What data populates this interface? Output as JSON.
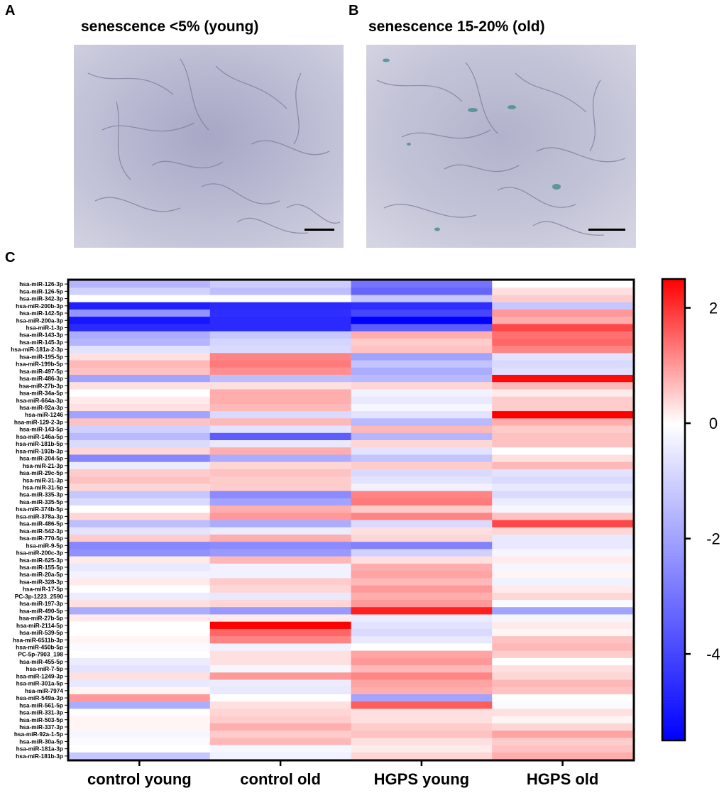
{
  "panels": {
    "A": {
      "letter": "A",
      "title": "senescence <5% (young)"
    },
    "B": {
      "letter": "B",
      "title": "senescence 15-20% (old)"
    },
    "C": {
      "letter": "C"
    }
  },
  "chart_data": {
    "type": "heatmap",
    "columns": [
      "control young",
      "control old",
      "HGPS young",
      "HGPS old"
    ],
    "rows": [
      "hsa-miR-126-3p",
      "hsa-miR-126-5p",
      "hsa-miR-342-3p",
      "hsa-miR-200b-3p",
      "hsa-miR-142-5p",
      "hsa-miR-200a-3p",
      "hsa-miR-1-3p",
      "hsa-miR-143-3p",
      "hsa-miR-145-3p",
      "hsa-miR-181a-2-3p",
      "hsa-miR-195-5p",
      "hsa-miR-199b-5p",
      "hsa-miR-497-5p",
      "hsa-miR-486-3p",
      "hsa-miR-27b-3p",
      "hsa-miR-34a-5p",
      "hsa-miR-664a-3p",
      "hsa-miR-92a-3p",
      "hsa-miR-1246",
      "hsa-miR-129-2-3p",
      "hsa-miR-143-5p",
      "hsa-miR-146a-5p",
      "hsa-miR-181b-5p",
      "hsa-miR-193b-3p",
      "hsa-miR-204-5p",
      "hsa-miR-21-3p",
      "hsa-miR-29c-5p",
      "hsa-miR-31-3p",
      "hsa-miR-31-5p",
      "hsa-miR-335-3p",
      "hsa-miR-335-5p",
      "hsa-miR-374b-5p",
      "hsa-miR-378a-3p",
      "hsa-miR-486-5p",
      "hsa-miR-542-3p",
      "hsa-miR-770-5p",
      "hsa-miR-9-5p",
      "hsa-miR-200c-3p",
      "hsa-miR-625-3p",
      "hsa-miR-155-5p",
      "hsa-miR-20a-5p",
      "hsa-miR-328-3p",
      "hsa-miR-17-5p",
      "PC-3p-1223_2590",
      "hsa-miR-197-3p",
      "hsa-miR-490-5p",
      "hsa-miR-27b-5p",
      "hsa-miR-2114-5p",
      "hsa-miR-539-5p",
      "hsa-miR-6511b-3p",
      "hsa-miR-450b-5p",
      "PC-5p-7903_198",
      "hsa-miR-455-5p",
      "hsa-miR-7-5p",
      "hsa-miR-1249-3p",
      "hsa-miR-301a-5p",
      "hsa-miR-7974",
      "hsa-miR-549a-3p",
      "hsa-miR-561-5p",
      "hsa-miR-331-3p",
      "hsa-miR-503-5p",
      "hsa-miR-337-3p",
      "hsa-miR-92a-1-5p",
      "hsa-miR-30a-5p",
      "hsa-miR-181a-3p",
      "hsa-miR-181b-3p"
    ],
    "values": [
      [
        -1.6,
        -1.1,
        -3.0,
        0.0
      ],
      [
        -1.0,
        -1.4,
        -3.3,
        0.3
      ],
      [
        0.0,
        0.0,
        -1.2,
        0.5
      ],
      [
        -4.8,
        -4.6,
        -4.5,
        -1.2
      ],
      [
        -2.3,
        -4.5,
        -4.0,
        1.0
      ],
      [
        -5.0,
        -4.6,
        -5.5,
        0.8
      ],
      [
        -4.6,
        -4.6,
        -3.5,
        1.8
      ],
      [
        -1.8,
        -1.2,
        0.8,
        1.4
      ],
      [
        -1.6,
        -0.9,
        0.5,
        1.5
      ],
      [
        -0.6,
        -0.8,
        0.6,
        1.2
      ],
      [
        0.3,
        1.2,
        -2.0,
        -0.6
      ],
      [
        0.7,
        1.3,
        -1.3,
        -0.8
      ],
      [
        0.6,
        1.1,
        -1.8,
        -0.7
      ],
      [
        -2.0,
        -1.4,
        -1.5,
        2.4
      ],
      [
        0.3,
        0.3,
        0.4,
        0.7
      ],
      [
        0.0,
        0.8,
        -0.3,
        0.2
      ],
      [
        0.2,
        0.8,
        -0.5,
        0.5
      ],
      [
        0.3,
        0.7,
        -0.2,
        0.5
      ],
      [
        -2.0,
        -0.8,
        -0.6,
        2.6
      ],
      [
        0.6,
        0.7,
        -1.5,
        0.8
      ],
      [
        -1.0,
        -0.6,
        0.7,
        0.5
      ],
      [
        -1.5,
        -3.5,
        -1.6,
        0.6
      ],
      [
        -0.8,
        -0.5,
        0.4,
        0.6
      ],
      [
        0.4,
        0.8,
        -0.6,
        0.0
      ],
      [
        -2.6,
        -1.8,
        -1.3,
        0.3
      ],
      [
        -0.4,
        0.4,
        0.5,
        0.7
      ],
      [
        0.5,
        0.6,
        -0.8,
        -0.6
      ],
      [
        0.6,
        0.5,
        -0.6,
        -0.8
      ],
      [
        0.4,
        0.5,
        -0.3,
        -0.5
      ],
      [
        -1.2,
        -2.5,
        1.2,
        -0.8
      ],
      [
        -0.8,
        -2.0,
        1.3,
        -0.4
      ],
      [
        0.0,
        0.8,
        0.5,
        -0.2
      ],
      [
        0.4,
        1.0,
        1.2,
        0.6
      ],
      [
        -1.4,
        -1.8,
        -0.8,
        1.8
      ],
      [
        -0.6,
        -0.4,
        0.3,
        0.4
      ],
      [
        0.5,
        0.8,
        0.4,
        -0.5
      ],
      [
        -2.6,
        -2.5,
        -2.7,
        -0.5
      ],
      [
        -2.4,
        -2.2,
        -1.0,
        -0.2
      ],
      [
        0.2,
        0.7,
        0.3,
        0.2
      ],
      [
        -0.5,
        -0.3,
        0.8,
        -0.2
      ],
      [
        -0.3,
        -0.3,
        0.9,
        0.1
      ],
      [
        0.2,
        0.5,
        0.7,
        -0.3
      ],
      [
        0.0,
        0.4,
        1.0,
        0.2
      ],
      [
        -0.4,
        -0.5,
        0.8,
        0.4
      ],
      [
        0.3,
        0.4,
        1.0,
        -0.1
      ],
      [
        -1.8,
        -2.2,
        2.2,
        -2.0
      ],
      [
        0.2,
        0.2,
        -0.4,
        -0.2
      ],
      [
        0.0,
        3.2,
        -0.6,
        0.2
      ],
      [
        0.0,
        1.5,
        -0.8,
        0.1
      ],
      [
        0.1,
        1.2,
        -0.5,
        0.6
      ],
      [
        -0.1,
        -0.3,
        0.0,
        0.7
      ],
      [
        0.0,
        0.3,
        0.9,
        0.5
      ],
      [
        -0.4,
        0.3,
        1.0,
        0.0
      ],
      [
        -0.6,
        -0.2,
        0.7,
        0.3
      ],
      [
        0.3,
        1.0,
        1.2,
        0.4
      ],
      [
        -0.5,
        -0.4,
        0.9,
        0.7
      ],
      [
        0.1,
        -0.5,
        0.8,
        0.6
      ],
      [
        1.0,
        0.0,
        -2.0,
        0.0
      ],
      [
        -1.8,
        0.3,
        1.6,
        -0.1
      ],
      [
        0.0,
        0.4,
        0.3,
        0.3
      ],
      [
        0.1,
        0.5,
        0.3,
        0.1
      ],
      [
        0.1,
        0.8,
        0.5,
        0.4
      ],
      [
        -0.2,
        0.5,
        0.6,
        0.9
      ],
      [
        -0.1,
        0.7,
        0.3,
        0.5
      ],
      [
        0.0,
        -0.2,
        0.2,
        0.6
      ],
      [
        -1.2,
        -0.3,
        0.4,
        0.8
      ]
    ],
    "colorbar": {
      "min": -5.5,
      "max": 2.5,
      "ticks": [
        "2",
        "0",
        "-2",
        "-4"
      ],
      "tick_values": [
        2,
        0,
        -2,
        -4
      ]
    },
    "colors": {
      "low": "#0000ff",
      "mid": "#ffffff",
      "high": "#ff0000"
    }
  }
}
